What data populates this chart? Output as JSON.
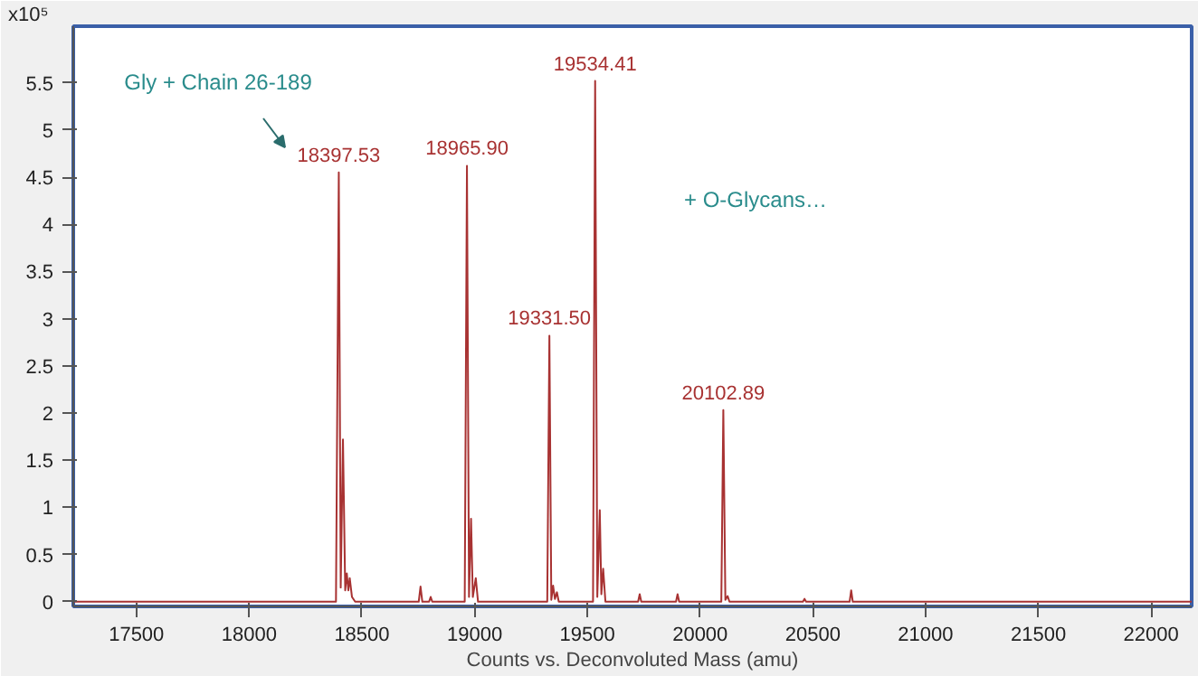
{
  "chart_data": {
    "type": "line",
    "ylabel": "x10⁵",
    "xlabel": "Counts vs. Deconvoluted Mass (amu)",
    "xlim": [
      17220,
      22180
    ],
    "ylim": [
      -0.05,
      6.1
    ],
    "xticks": [
      17500,
      18000,
      18500,
      19000,
      19500,
      20000,
      20500,
      21000,
      21500,
      22000
    ],
    "yticks": [
      0,
      0.5,
      1,
      1.5,
      2,
      2.5,
      3,
      3.5,
      4,
      4.5,
      5,
      5.5
    ],
    "grid": false,
    "marker": "none",
    "line_style": "solid",
    "series": [
      {
        "color": "#a83232",
        "x": [
          17220,
          18385,
          18397.53,
          18406,
          18416,
          18426,
          18433,
          18440,
          18446,
          18456,
          18470,
          18752,
          18760,
          18768,
          18798,
          18805,
          18812,
          18956,
          18965.9,
          18975,
          18984,
          18992,
          19005,
          19015,
          19322,
          19331.5,
          19340,
          19348,
          19356,
          19365,
          19373,
          19525,
          19534.41,
          19544,
          19555,
          19562,
          19570,
          19580,
          19725,
          19732,
          19739,
          19893,
          19900,
          19907,
          20094,
          20102.89,
          20112,
          20122,
          20130,
          20456,
          20463,
          20470,
          20663,
          20670,
          20677,
          22180
        ],
        "values": [
          0,
          0,
          4.55,
          0.15,
          1.72,
          0.12,
          0.3,
          0.12,
          0.25,
          0.05,
          0,
          0,
          0.16,
          0,
          0,
          0.05,
          0,
          0,
          4.62,
          0.05,
          0.88,
          0.05,
          0.25,
          0,
          0,
          2.82,
          0.02,
          0.17,
          0.03,
          0.1,
          0,
          0,
          5.52,
          0.05,
          0.97,
          0.08,
          0.35,
          0,
          0,
          0.08,
          0,
          0,
          0.08,
          0,
          0,
          2.03,
          0.02,
          0.06,
          0,
          0,
          0.03,
          0,
          0,
          0.12,
          0,
          0
        ]
      }
    ],
    "annotations": [
      {
        "text": "18397.53",
        "x": 18397.53,
        "y": 4.55
      },
      {
        "text": "18965.90",
        "x": 18965.9,
        "y": 4.62
      },
      {
        "text": "19331.50",
        "x": 19331.5,
        "y": 2.82
      },
      {
        "text": "19534.41",
        "x": 19534.41,
        "y": 5.52
      },
      {
        "text": "20102.89",
        "x": 20102.89,
        "y": 2.03
      },
      "Gly + Chain 26-189",
      "+ O-Glycans…"
    ]
  }
}
